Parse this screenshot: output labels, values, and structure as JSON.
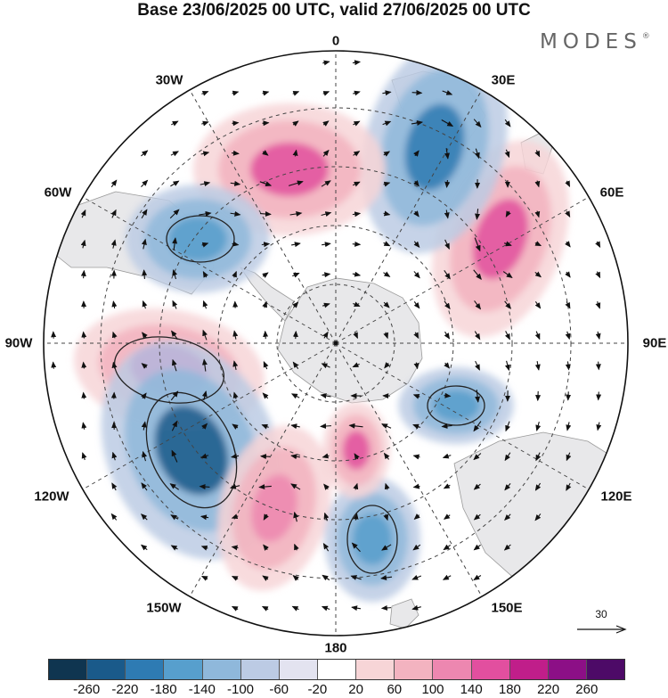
{
  "title": "Base 23/06/2025 00 UTC, valid 27/06/2025 00 UTC",
  "brand": "MODES",
  "brand_mark": "®",
  "longitude_labels": [
    "0",
    "30E",
    "60E",
    "90E",
    "120E",
    "150E",
    "180",
    "150W",
    "120W",
    "90W",
    "60W",
    "30W"
  ],
  "vector_reference": "30",
  "colorbar": {
    "colors": [
      "#0f3550",
      "#1a5a8a",
      "#2e7bb3",
      "#579fcd",
      "#8fb8db",
      "#bccbe4",
      "#e3e3f0",
      "#ffffff",
      "#f7d5d7",
      "#f3b3c0",
      "#ed87b0",
      "#e24f9f",
      "#c01e8a",
      "#8c0f86",
      "#4d0a67"
    ],
    "ticks": [
      "-260",
      "-220",
      "-180",
      "-140",
      "-100",
      "-60",
      "-20",
      "20",
      "60",
      "100",
      "140",
      "180",
      "220",
      "260"
    ]
  },
  "anomaly_centers": [
    {
      "sign": "positive",
      "color": "#c01e8a",
      "level": 220
    },
    {
      "sign": "negative",
      "color": "#1a5a8a",
      "level": -220
    },
    {
      "sign": "positive",
      "color": "#e24f9f",
      "level": 180
    },
    {
      "sign": "negative",
      "color": "#2e7bb3",
      "level": -180
    },
    {
      "sign": "positive",
      "color": "#e24f9f",
      "level": 140
    },
    {
      "sign": "negative",
      "color": "#579fcd",
      "level": -180
    },
    {
      "sign": "negative",
      "color": "#579fcd",
      "level": -140
    },
    {
      "sign": "negative",
      "color": "#579fcd",
      "level": -140
    },
    {
      "sign": "positive",
      "color": "#ed87b0",
      "level": 100
    },
    {
      "sign": "positive",
      "color": "#e24f9f",
      "level": 140
    }
  ]
}
